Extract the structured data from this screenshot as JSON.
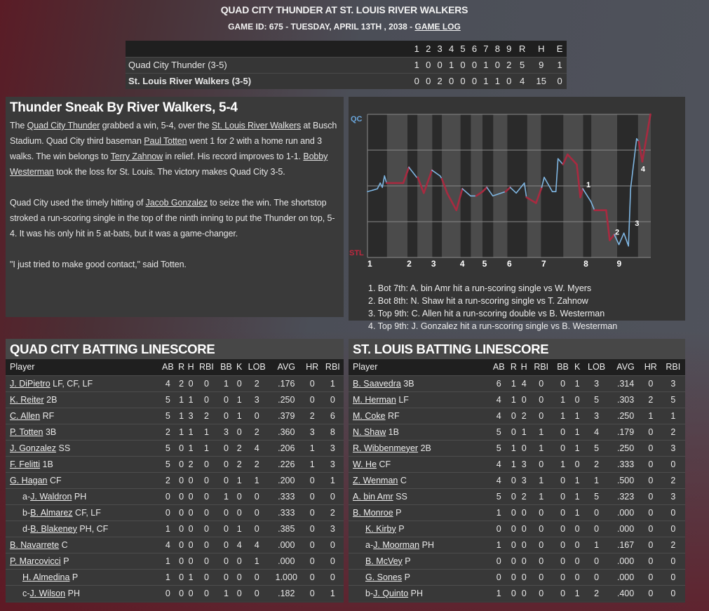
{
  "header": {
    "title": "QUAD CITY THUNDER AT ST. LOUIS RIVER WALKERS",
    "subtitle": "GAME ID: 675 - TUESDAY, APRIL 13TH , 2038 - ",
    "game_log_link": "GAME LOG"
  },
  "linescore": {
    "columns": [
      "",
      "1",
      "2",
      "3",
      "4",
      "5",
      "6",
      "7",
      "8",
      "9",
      "R",
      "H",
      "E"
    ],
    "rows": [
      [
        "Quad City Thunder (3-5)",
        "1",
        "0",
        "0",
        "1",
        "0",
        "0",
        "1",
        "0",
        "2",
        "5",
        "9",
        "1"
      ],
      [
        "St. Louis River Walkers (3-5)",
        "0",
        "0",
        "2",
        "0",
        "0",
        "0",
        "1",
        "1",
        "0",
        "4",
        "15",
        "0"
      ]
    ]
  },
  "article": {
    "headline": "Thunder Sneak By River Walkers, 5-4",
    "paragraphs": [
      [
        {
          "t": "The "
        },
        {
          "t": "Quad City Thunder",
          "link": true
        },
        {
          "t": " grabbed a win, 5-4, over the "
        },
        {
          "t": "St. Louis River Walkers",
          "link": true
        },
        {
          "t": " at Busch Stadium. Quad City third baseman "
        },
        {
          "t": "Paul Totten",
          "link": true
        },
        {
          "t": " went 1 for 2 with a home run and 3 walks. The win belongs to "
        },
        {
          "t": "Terry Zahnow",
          "link": true
        },
        {
          "t": " in relief. His record improves to 1-1. "
        },
        {
          "t": "Bobby Westerman",
          "link": true
        },
        {
          "t": " took the loss for St. Louis. The victory makes Quad City 3-5."
        }
      ],
      [
        {
          "t": "Quad City used the timely hitting of "
        },
        {
          "t": "Jacob Gonzalez",
          "link": true
        },
        {
          "t": " to seize the win. The shortstop stroked a run-scoring single in the top of the ninth inning to put the Thunder on top, 5-4. It was his only hit in 5 at-bats, but it was a game-changer."
        }
      ],
      [
        {
          "t": "\"I just tried to make good contact,\" said Totten."
        }
      ]
    ]
  },
  "chart_data": {
    "type": "line",
    "top_label": "QC",
    "bottom_label": "STL",
    "ylim": [
      0,
      100
    ],
    "xlim": [
      0,
      80
    ],
    "grid": true,
    "colors": {
      "QC": "#7fb6e2",
      "STL": "#a82a40"
    },
    "x_ticks": [
      {
        "label": "1",
        "x": 0.6
      },
      {
        "label": "2",
        "x": 11.7
      },
      {
        "label": "3",
        "x": 18.6
      },
      {
        "label": "4",
        "x": 26.7
      },
      {
        "label": "5",
        "x": 33
      },
      {
        "label": "6",
        "x": 40
      },
      {
        "label": "7",
        "x": 49.7
      },
      {
        "label": "8",
        "x": 61.6
      },
      {
        "label": "9",
        "x": 71
      }
    ],
    "half_inning_bounds": [
      0,
      5.5,
      11.3,
      14.1,
      18.3,
      21,
      26.3,
      29.2,
      32.5,
      35.5,
      39.5,
      45.1,
      49,
      55.3,
      60.9,
      63.2,
      70.5,
      76.4,
      80
    ],
    "points": [
      [
        0,
        46,
        "QC"
      ],
      [
        1.5,
        47,
        "QC"
      ],
      [
        2.8,
        48,
        "QC"
      ],
      [
        3.6,
        52,
        "QC"
      ],
      [
        4.2,
        49,
        "QC"
      ],
      [
        4.8,
        57,
        "QC"
      ],
      [
        5.4,
        52,
        "STL"
      ],
      [
        10.1,
        52,
        "STL"
      ],
      [
        11.7,
        63,
        "QC"
      ],
      [
        13.9,
        56,
        "QC"
      ],
      [
        14.2,
        56,
        "STL"
      ],
      [
        15.9,
        45,
        "STL"
      ],
      [
        18.2,
        61,
        "QC"
      ],
      [
        20.5,
        57,
        "QC"
      ],
      [
        21,
        55,
        "STL"
      ],
      [
        22.5,
        45,
        "STL"
      ],
      [
        25.1,
        33,
        "STL"
      ],
      [
        26.8,
        48,
        "QC"
      ],
      [
        29.1,
        43,
        "QC"
      ],
      [
        30.7,
        43,
        "STL"
      ],
      [
        32.5,
        46,
        "STL"
      ],
      [
        33.7,
        49,
        "QC"
      ],
      [
        35.4,
        43,
        "QC"
      ],
      [
        39,
        46,
        "STL"
      ],
      [
        40.3,
        49,
        "QC"
      ],
      [
        42,
        45,
        "QC"
      ],
      [
        44.3,
        52,
        "QC"
      ],
      [
        44.9,
        42,
        "STL"
      ],
      [
        47.6,
        38,
        "STL"
      ],
      [
        49.2,
        49,
        "QC"
      ],
      [
        49.9,
        56,
        "QC"
      ],
      [
        52.2,
        46,
        "QC"
      ],
      [
        53.2,
        46,
        "QC"
      ],
      [
        53.8,
        69,
        "QC"
      ],
      [
        55.2,
        65,
        "STL"
      ],
      [
        56.5,
        72,
        "STL"
      ],
      [
        59.1,
        65,
        "STL"
      ],
      [
        60.1,
        42,
        "STL"
      ],
      [
        60.8,
        48,
        "QC"
      ],
      [
        63.1,
        39,
        "QC"
      ],
      [
        64.1,
        33,
        "STL"
      ],
      [
        67.4,
        33,
        "STL"
      ],
      [
        68.4,
        12,
        "STL"
      ],
      [
        69.7,
        16,
        "QC"
      ],
      [
        71,
        9,
        "QC"
      ],
      [
        72.4,
        17,
        "QC"
      ],
      [
        73.7,
        8,
        "QC"
      ],
      [
        74.3,
        48,
        "QC"
      ],
      [
        76,
        83,
        "QC"
      ],
      [
        76.6,
        81,
        "STL"
      ],
      [
        77.6,
        67,
        "STL"
      ],
      [
        79.9,
        100,
        "STL"
      ]
    ],
    "markers": [
      {
        "label": "1",
        "x": 61.2,
        "y": 51
      },
      {
        "label": "2",
        "x": 69.3,
        "y": 18
      },
      {
        "label": "3",
        "x": 74.9,
        "y": 24
      },
      {
        "label": "4",
        "x": 76.6,
        "y": 62
      }
    ],
    "notes": [
      "1. Bot 7th: A. bin Amr hit a run-scoring single vs W. Myers",
      "2. Bot 8th: N. Shaw hit a run-scoring single vs T. Zahnow",
      "3. Top 9th: C. Allen hit a run-scoring double vs B. Westerman",
      "4. Top 9th: J. Gonzalez hit a run-scoring single vs B. Westerman"
    ]
  },
  "batting_columns": [
    "Player",
    "AB",
    "R",
    "H",
    "RBI",
    "BB",
    "K",
    "LOB",
    "AVG",
    "HR",
    "RBI"
  ],
  "qc_batting": {
    "title": "QUAD CITY BATTING LINESCORE",
    "rows": [
      {
        "pre": "",
        "name": "J. DiPietro",
        "pos": "LF, CF, LF",
        "indent": false,
        "stats": [
          "4",
          "2",
          "0",
          "0",
          "1",
          "0",
          "2",
          ".176",
          "0",
          "1"
        ]
      },
      {
        "pre": "",
        "name": "K. Reiter",
        "pos": "2B",
        "indent": false,
        "stats": [
          "5",
          "1",
          "1",
          "0",
          "0",
          "1",
          "3",
          ".250",
          "0",
          "0"
        ]
      },
      {
        "pre": "",
        "name": "C. Allen",
        "pos": "RF",
        "indent": false,
        "stats": [
          "5",
          "1",
          "3",
          "2",
          "0",
          "1",
          "0",
          ".379",
          "2",
          "6"
        ]
      },
      {
        "pre": "",
        "name": "P. Totten",
        "pos": "3B",
        "indent": false,
        "stats": [
          "2",
          "1",
          "1",
          "1",
          "3",
          "0",
          "2",
          ".360",
          "3",
          "8"
        ]
      },
      {
        "pre": "",
        "name": "J. Gonzalez",
        "pos": "SS",
        "indent": false,
        "stats": [
          "5",
          "0",
          "1",
          "1",
          "0",
          "2",
          "4",
          ".206",
          "1",
          "3"
        ]
      },
      {
        "pre": "",
        "name": "F. Felitti",
        "pos": "1B",
        "indent": false,
        "stats": [
          "5",
          "0",
          "2",
          "0",
          "0",
          "2",
          "2",
          ".226",
          "1",
          "3"
        ]
      },
      {
        "pre": "",
        "name": "G. Hagan",
        "pos": "CF",
        "indent": false,
        "stats": [
          "2",
          "0",
          "0",
          "0",
          "0",
          "1",
          "1",
          ".200",
          "0",
          "1"
        ]
      },
      {
        "pre": "a-",
        "name": "J. Waldron",
        "pos": "PH",
        "indent": true,
        "stats": [
          "0",
          "0",
          "0",
          "0",
          "1",
          "0",
          "0",
          ".333",
          "0",
          "0"
        ]
      },
      {
        "pre": "b-",
        "name": "B. Almarez",
        "pos": "CF, LF",
        "indent": true,
        "stats": [
          "0",
          "0",
          "0",
          "0",
          "0",
          "0",
          "0",
          ".333",
          "0",
          "2"
        ]
      },
      {
        "pre": "d-",
        "name": "B. Blakeney",
        "pos": "PH, CF",
        "indent": true,
        "stats": [
          "1",
          "0",
          "0",
          "0",
          "0",
          "1",
          "0",
          ".385",
          "0",
          "3"
        ]
      },
      {
        "pre": "",
        "name": "B. Navarrete",
        "pos": "C",
        "indent": false,
        "stats": [
          "4",
          "0",
          "0",
          "0",
          "0",
          "4",
          "4",
          ".000",
          "0",
          "0"
        ]
      },
      {
        "pre": "",
        "name": "P. Marcovicci",
        "pos": "P",
        "indent": false,
        "stats": [
          "1",
          "0",
          "0",
          "0",
          "0",
          "0",
          "1",
          ".000",
          "0",
          "0"
        ]
      },
      {
        "pre": "",
        "name": "H. Almedina",
        "pos": "P",
        "indent": true,
        "stats": [
          "1",
          "0",
          "1",
          "0",
          "0",
          "0",
          "0",
          "1.000",
          "0",
          "0"
        ]
      },
      {
        "pre": "c-",
        "name": "J. Wilson",
        "pos": "PH",
        "indent": true,
        "stats": [
          "0",
          "0",
          "0",
          "0",
          "1",
          "0",
          "0",
          ".182",
          "0",
          "1"
        ]
      }
    ]
  },
  "stl_batting": {
    "title": "ST. LOUIS BATTING LINESCORE",
    "rows": [
      {
        "pre": "",
        "name": "B. Saavedra",
        "pos": "3B",
        "indent": false,
        "stats": [
          "6",
          "1",
          "4",
          "0",
          "0",
          "1",
          "3",
          ".314",
          "0",
          "3"
        ]
      },
      {
        "pre": "",
        "name": "M. Herman",
        "pos": "LF",
        "indent": false,
        "stats": [
          "4",
          "1",
          "0",
          "0",
          "1",
          "0",
          "5",
          ".303",
          "2",
          "5"
        ]
      },
      {
        "pre": "",
        "name": "M. Coke",
        "pos": "RF",
        "indent": false,
        "stats": [
          "4",
          "0",
          "2",
          "0",
          "1",
          "1",
          "3",
          ".250",
          "1",
          "1"
        ]
      },
      {
        "pre": "",
        "name": "N. Shaw",
        "pos": "1B",
        "indent": false,
        "stats": [
          "5",
          "0",
          "1",
          "1",
          "0",
          "1",
          "4",
          ".179",
          "0",
          "2"
        ]
      },
      {
        "pre": "",
        "name": "R. Wibbenmeyer",
        "pos": "2B",
        "indent": false,
        "stats": [
          "5",
          "1",
          "0",
          "1",
          "0",
          "1",
          "5",
          ".250",
          "0",
          "3"
        ]
      },
      {
        "pre": "",
        "name": "W. He",
        "pos": "CF",
        "indent": false,
        "stats": [
          "4",
          "1",
          "3",
          "0",
          "1",
          "0",
          "2",
          ".333",
          "0",
          "0"
        ]
      },
      {
        "pre": "",
        "name": "Z. Wenman",
        "pos": "C",
        "indent": false,
        "stats": [
          "4",
          "0",
          "3",
          "1",
          "0",
          "1",
          "1",
          ".500",
          "0",
          "2"
        ]
      },
      {
        "pre": "",
        "name": "A. bin Amr",
        "pos": "SS",
        "indent": false,
        "stats": [
          "5",
          "0",
          "2",
          "1",
          "0",
          "1",
          "5",
          ".323",
          "0",
          "3"
        ]
      },
      {
        "pre": "",
        "name": "B. Monroe",
        "pos": "P",
        "indent": false,
        "stats": [
          "1",
          "0",
          "0",
          "0",
          "0",
          "1",
          "0",
          ".000",
          "0",
          "0"
        ]
      },
      {
        "pre": "",
        "name": "K. Kirby",
        "pos": "P",
        "indent": true,
        "stats": [
          "0",
          "0",
          "0",
          "0",
          "0",
          "0",
          "0",
          ".000",
          "0",
          "0"
        ]
      },
      {
        "pre": "a-",
        "name": "J. Moorman",
        "pos": "PH",
        "indent": true,
        "stats": [
          "1",
          "0",
          "0",
          "0",
          "0",
          "0",
          "1",
          ".167",
          "0",
          "2"
        ]
      },
      {
        "pre": "",
        "name": "B. McVey",
        "pos": "P",
        "indent": true,
        "stats": [
          "0",
          "0",
          "0",
          "0",
          "0",
          "0",
          "0",
          ".000",
          "0",
          "0"
        ]
      },
      {
        "pre": "",
        "name": "G. Sones",
        "pos": "P",
        "indent": true,
        "stats": [
          "0",
          "0",
          "0",
          "0",
          "0",
          "0",
          "0",
          ".000",
          "0",
          "0"
        ]
      },
      {
        "pre": "b-",
        "name": "J. Quinto",
        "pos": "PH",
        "indent": true,
        "stats": [
          "1",
          "0",
          "0",
          "0",
          "0",
          "1",
          "2",
          ".400",
          "0",
          "0"
        ]
      }
    ]
  }
}
